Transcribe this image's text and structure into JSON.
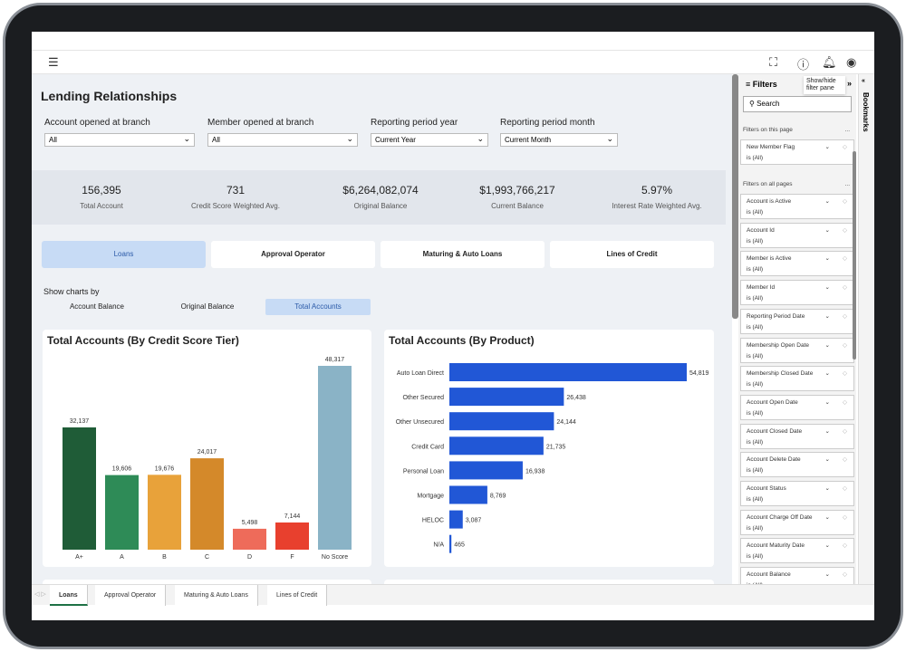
{
  "header": {
    "menu_icon": "hamburger-icon",
    "icons": [
      "fullscreen-icon",
      "help-icon",
      "bell-icon",
      "account-icon"
    ]
  },
  "page": {
    "title": "Lending Relationships"
  },
  "slicers": [
    {
      "label": "Account opened at branch",
      "value": "All"
    },
    {
      "label": "Member opened at branch",
      "value": "All"
    },
    {
      "label": "Reporting period year",
      "value": "Current Year"
    },
    {
      "label": "Reporting period month",
      "value": "Current Month"
    }
  ],
  "kpis": [
    {
      "value": "156,395",
      "label": "Total Account"
    },
    {
      "value": "731",
      "label": "Credit Score Weighted Avg."
    },
    {
      "value": "$6,264,082,074",
      "label": "Original Balance"
    },
    {
      "value": "$1,993,766,217",
      "label": "Current Balance"
    },
    {
      "value": "5.97%",
      "label": "Interest Rate Weighted Avg."
    }
  ],
  "nav": [
    {
      "label": "Loans",
      "active": true
    },
    {
      "label": "Approval Operator"
    },
    {
      "label": "Maturing & Auto Loans"
    },
    {
      "label": "Lines of Credit"
    }
  ],
  "show_by": {
    "label": "Show charts by",
    "options": [
      "Account Balance",
      "Original Balance",
      "Total Accounts"
    ],
    "selected": "Total Accounts"
  },
  "chart_data": [
    {
      "type": "bar",
      "title": "Total Accounts (By Credit Score Tier)",
      "categories": [
        "A+",
        "A",
        "B",
        "C",
        "D",
        "F",
        "No Score"
      ],
      "values": [
        32137,
        19606,
        19676,
        24017,
        5498,
        7144,
        48317
      ],
      "labels": [
        "32,137",
        "19,606",
        "19,676",
        "24,017",
        "5,498",
        "7,144",
        "48,317"
      ],
      "colors": [
        "#1f5c37",
        "#2e8b57",
        "#e8a23a",
        "#d4892a",
        "#ee6b5a",
        "#e8402e",
        "#8ab3c6"
      ],
      "ylim": [
        0,
        48317
      ]
    },
    {
      "type": "bar",
      "orientation": "horizontal",
      "title": "Total Accounts (By Product)",
      "categories": [
        "Auto Loan Direct",
        "Other Secured",
        "Other Unsecured",
        "Credit Card",
        "Personal Loan",
        "Mortgage",
        "HELOC",
        "N/A"
      ],
      "values": [
        54819,
        26438,
        24144,
        21735,
        16938,
        8769,
        3087,
        465
      ],
      "labels": [
        "54,819",
        "26,438",
        "24,144",
        "21,735",
        "16,938",
        "8,769",
        "3,087",
        "465"
      ],
      "color": "#2157d6",
      "xlim": [
        0,
        54819
      ]
    }
  ],
  "filter_pane": {
    "title": "Filters",
    "tooltip": "Show/hide filter pane",
    "search_placeholder": "Search",
    "section_page": "Filters on this page",
    "section_all": "Filters on all pages",
    "more": "...",
    "page_filters": [
      {
        "name": "New Member Flag",
        "state": "is (All)"
      }
    ],
    "all_filters": [
      {
        "name": "Account is Active",
        "state": "is (All)"
      },
      {
        "name": "Account Id",
        "state": "is (All)"
      },
      {
        "name": "Member is Active",
        "state": "is (All)"
      },
      {
        "name": "Member Id",
        "state": "is (All)"
      },
      {
        "name": "Reporting Period Date",
        "state": "is (All)"
      },
      {
        "name": "Membership Open Date",
        "state": "is (All)"
      },
      {
        "name": "Membership Closed Date",
        "state": "is (All)"
      },
      {
        "name": "Account Open Date",
        "state": "is (All)"
      },
      {
        "name": "Account Closed Date",
        "state": "is (All)"
      },
      {
        "name": "Account Delete Date",
        "state": "is (All)"
      },
      {
        "name": "Account Status",
        "state": "is (All)"
      },
      {
        "name": "Account Charge Off Date",
        "state": "is (All)"
      },
      {
        "name": "Account Maturity Date",
        "state": "is (All)"
      },
      {
        "name": "Account Balance",
        "state": "is (All)"
      }
    ]
  },
  "bookmarks": {
    "label": "Bookmarks"
  },
  "page_tabs": [
    {
      "label": "Loans",
      "active": true
    },
    {
      "label": "Approval Operator"
    },
    {
      "label": "Maturing & Auto Loans"
    },
    {
      "label": "Lines of Credit"
    }
  ]
}
